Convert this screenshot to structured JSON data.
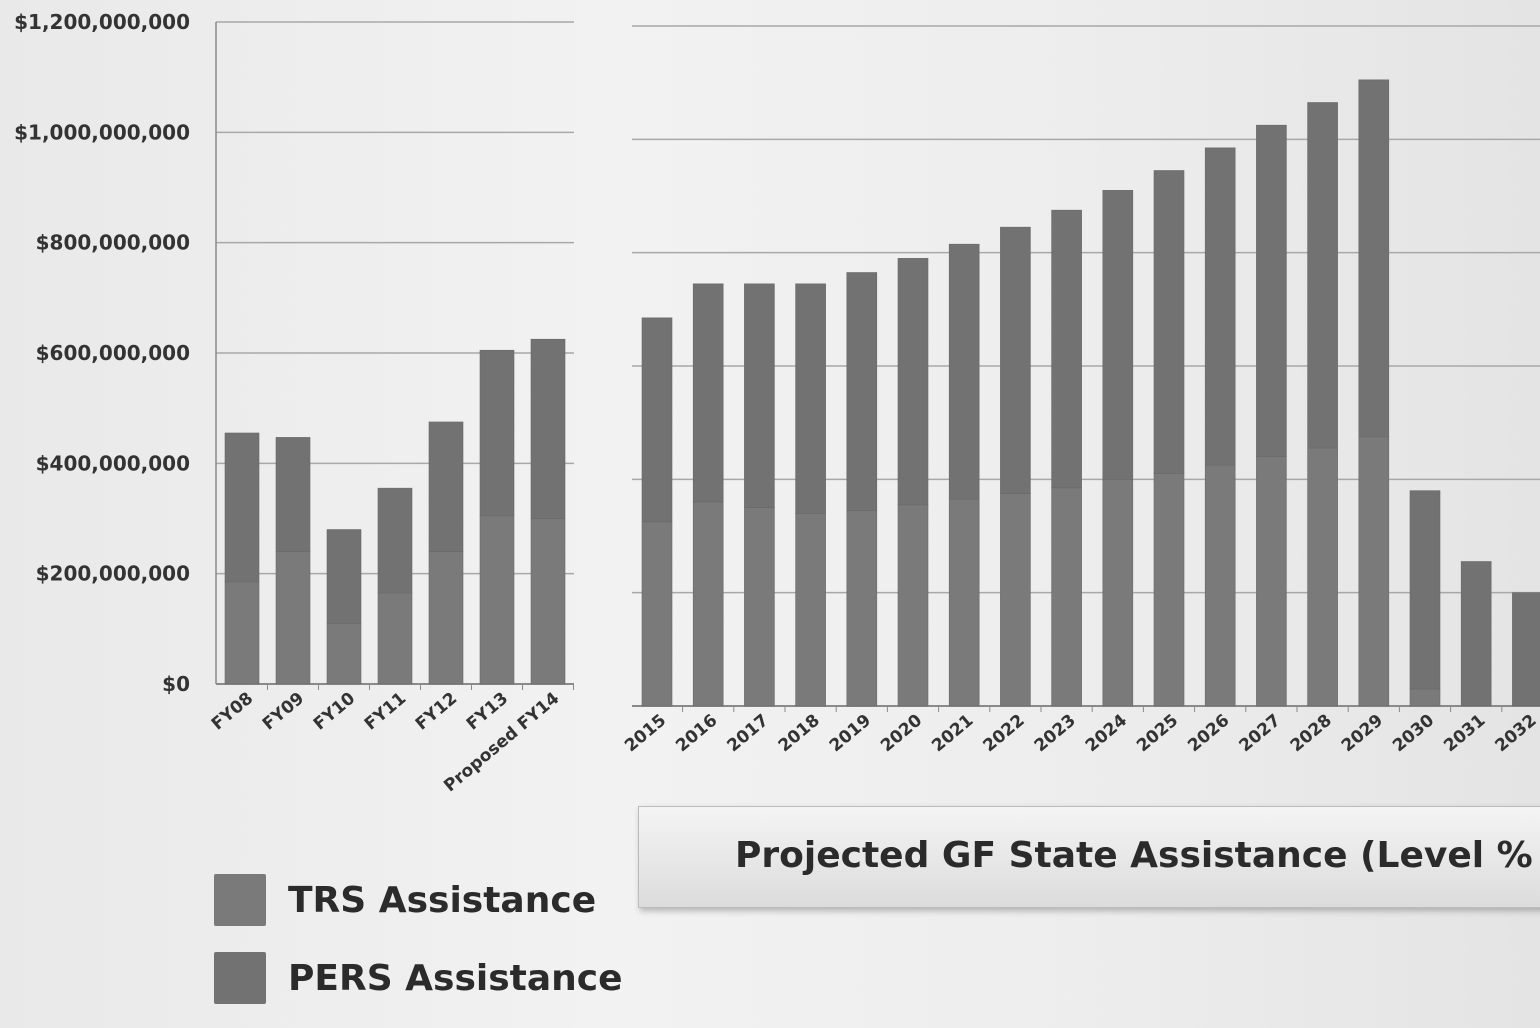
{
  "chart_data": [
    {
      "type": "bar",
      "categories": [
        "FY08",
        "FY09",
        "FY10",
        "FY11",
        "FY12",
        "FY13",
        "Proposed FY14"
      ],
      "series": [
        {
          "name": "TRS Assistance",
          "values": [
            185000000,
            240000000,
            110000000,
            165000000,
            240000000,
            305000000,
            300000000
          ]
        },
        {
          "name": "PERS Assistance",
          "values": [
            270000000,
            207000000,
            170000000,
            190000000,
            235000000,
            300000000,
            325000000
          ]
        }
      ],
      "y_ticks": [
        "$0",
        "$200,000,000",
        "$400,000,000",
        "$600,000,000",
        "$800,000,000",
        "$1,000,000,000",
        "$1,200,000,000"
      ],
      "ylim": [
        0,
        1200000000
      ],
      "stacked": true,
      "grid": true
    },
    {
      "type": "bar",
      "title": "Projected GF State Assistance (Level %",
      "categories": [
        "2015",
        "2016",
        "2017",
        "2018",
        "2019",
        "2020",
        "2021",
        "2022",
        "2023",
        "2024",
        "2025",
        "2026",
        "2027",
        "2028",
        "2029",
        "2030",
        "2031",
        "2032"
      ],
      "series": [
        {
          "name": "TRS Assistance",
          "values": [
            325000000,
            360000000,
            350000000,
            340000000,
            345000000,
            355000000,
            365000000,
            375000000,
            385000000,
            400000000,
            410000000,
            425000000,
            440000000,
            455000000,
            475000000,
            30000000,
            0,
            0
          ]
        },
        {
          "name": "PERS Assistance",
          "values": [
            360000000,
            385000000,
            395000000,
            405000000,
            420000000,
            435000000,
            450000000,
            470000000,
            490000000,
            510000000,
            535000000,
            560000000,
            585000000,
            610000000,
            630000000,
            350000000,
            255000000,
            200000000
          ]
        }
      ],
      "ylim": [
        0,
        1200000000
      ],
      "stacked": true,
      "grid": true
    }
  ],
  "legend": {
    "items": [
      {
        "label": "TRS Assistance",
        "color": "#7a7a7a"
      },
      {
        "label": "PERS Assistance",
        "color": "#727272"
      }
    ]
  },
  "colors": {
    "trs": "#7a7a7a",
    "pers": "#727272",
    "grid": "#a8a8a8",
    "axis": "#8a8a8a"
  }
}
